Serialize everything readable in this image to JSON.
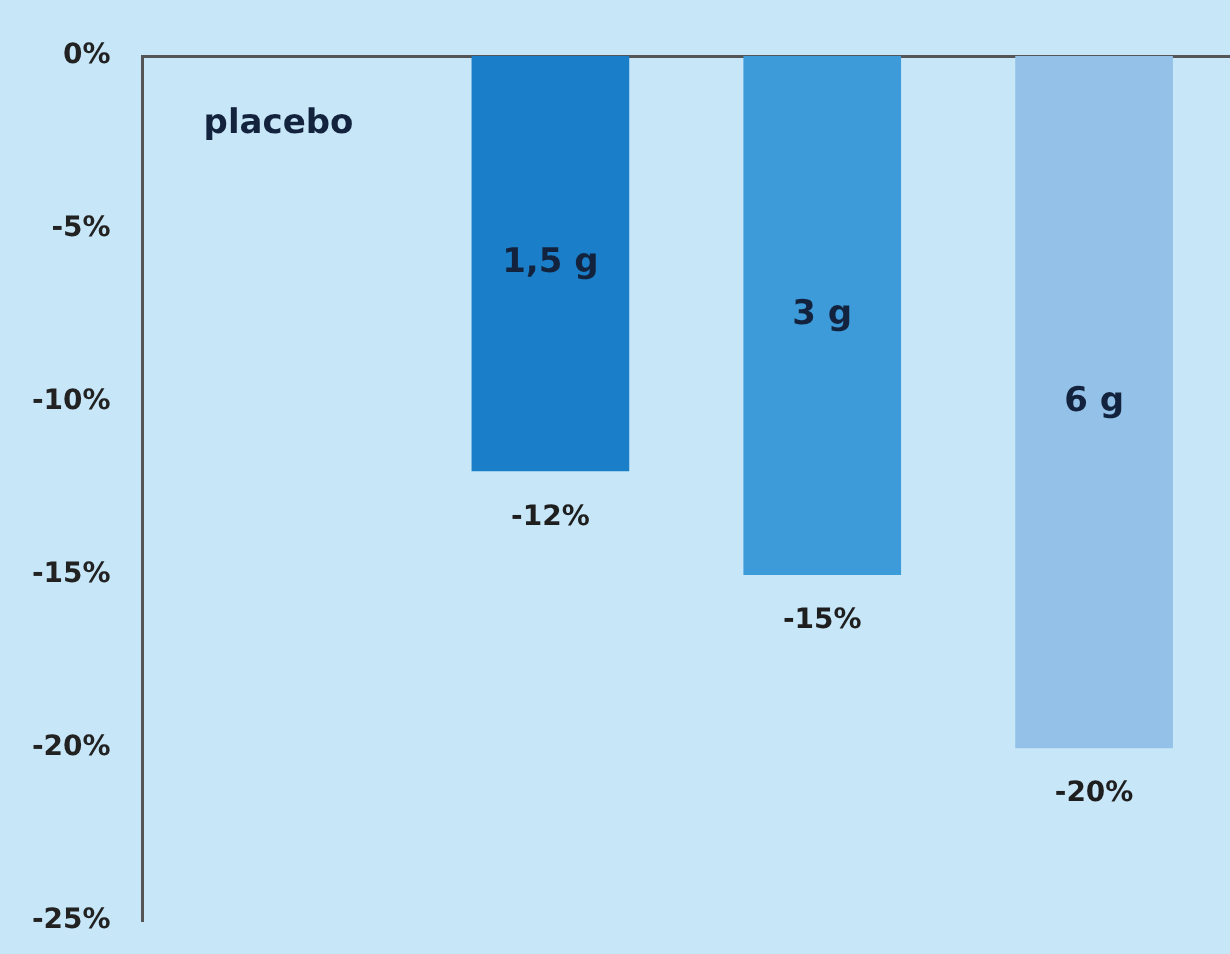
{
  "chart_data": {
    "type": "bar",
    "categories": [
      "placebo",
      "1,5 g",
      "3 g",
      "6 g"
    ],
    "values": [
      0,
      -12,
      -15,
      -20
    ],
    "colors": [
      "#1a7fc8",
      "#1a7fc8",
      "#3d9bd9",
      "#94c1e7"
    ],
    "value_labels": [
      null,
      "-12%",
      "-15%",
      "-20%"
    ],
    "ylim": [
      -25,
      0
    ],
    "yticks": [
      {
        "value": 0,
        "label": "0%"
      },
      {
        "value": -5,
        "label": "-5%"
      },
      {
        "value": -10,
        "label": "-10%"
      },
      {
        "value": -15,
        "label": "-15%"
      },
      {
        "value": -20,
        "label": "-20%"
      },
      {
        "value": -25,
        "label": "-25%"
      }
    ],
    "grid": false,
    "legend": false,
    "tick_labels": "y"
  }
}
